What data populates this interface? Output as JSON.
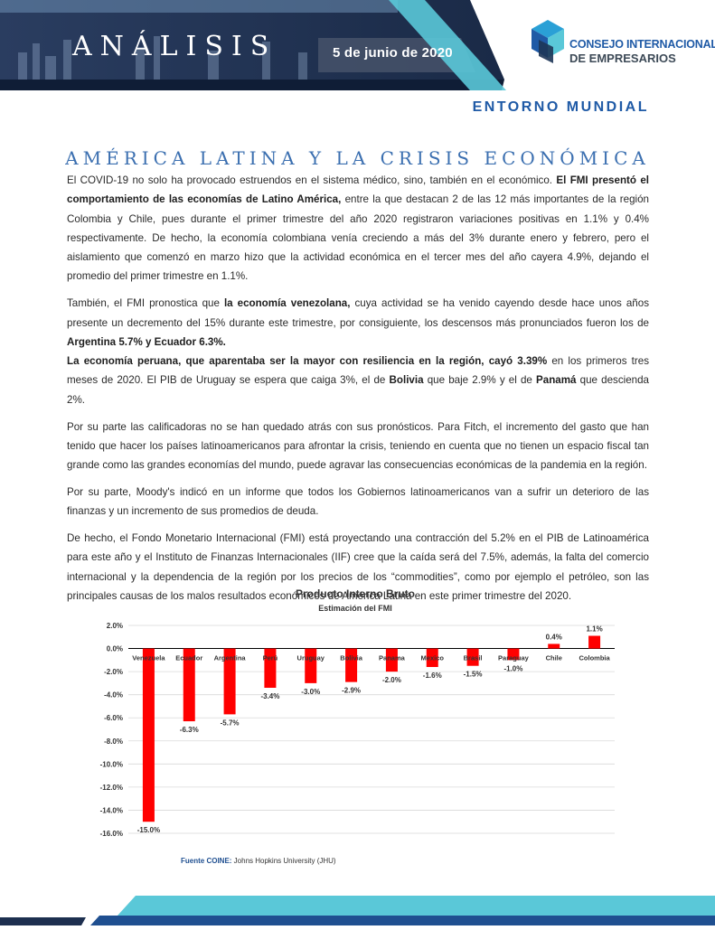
{
  "header": {
    "title": "ANÁLISIS",
    "date": "5 de junio  de 2020",
    "logo_line1": "CONSEJO INTERNACIONAL",
    "logo_line2": "DE EMPRESARIOS",
    "logo_icon": "coine-cube-logo-icon",
    "colors": {
      "navy": "#1d2f4f",
      "blue": "#1f5aa6",
      "teal": "#5ac8d8"
    }
  },
  "section_label": "ENTORNO MUNDIAL",
  "article": {
    "title": "AMÉRICA LATINA Y LA CRISIS ECONÓMICA",
    "p1": [
      "El COVID-19 no solo ha provocado estruendos en el sistema médico, sino, también en el económico. ",
      "El FMI presentó el comportamiento de las economías de Latino América,",
      " entre la que destacan 2 de las 12 más importantes de la región Colombia y Chile, pues durante el primer trimestre del año 2020 registraron variaciones positivas en 1.1% y 0.4% respectivamente. De hecho, la economía colombiana venía creciendo a más del 3% durante enero y febrero, pero el aislamiento que comenzó en marzo hizo que la actividad económica en el tercer mes del año cayera 4.9%, dejando el promedio del primer trimestre en 1.1%."
    ],
    "p2": [
      "También, el FMI pronostica que ",
      "la economía venezolana,",
      " cuya actividad se ha venido cayendo desde hace unos años presente un decremento del 15% durante este trimestre, por consiguiente, los descensos más pronunciados fueron los de ",
      "Argentina 5.7% y Ecuador 6.3%.",
      "La economía peruana, que aparentaba ser la mayor con resiliencia en la región, cayó 3.39%",
      " en los primeros tres meses de 2020. El PIB de Uruguay se espera que caiga 3%, el de ",
      "Bolivia",
      " que baje 2.9% y el de ",
      "Panamá",
      " que descienda 2%."
    ],
    "p3": "Por su parte las calificadoras no se han quedado atrás con sus pronósticos. Para Fitch, el incremento del gasto que han tenido que hacer los países latinoamericanos para afrontar la crisis, teniendo en cuenta que no tienen un espacio fiscal tan grande como las grandes economías del mundo, puede agravar las consecuencias económicas de la pandemia en la región.",
    "p4": "Por su parte, Moody's indicó en un informe que todos los Gobiernos latinoamericanos van a sufrir un deterioro de las finanzas y un incremento de sus promedios de deuda.",
    "p5": "De hecho, el Fondo Monetario Internacional (FMI) está proyectando una contracción del 5.2% en el PIB de Latinoamérica para este año y el Instituto de Finanzas Internacionales (IIF) cree que la caída será del 7.5%, además, la falta del comercio internacional y la dependencia de la región  por los precios de los “commodities”, como por ejemplo el petróleo, son las principales causas de los malos resultados económicos de América Latina en este primer trimestre del 2020."
  },
  "chart_data": {
    "type": "bar",
    "title": "Producto Interno Bruto",
    "subtitle": "Estimación del FMI",
    "categories": [
      "Venezuela",
      "Ecuador",
      "Argentina",
      "Perú",
      "Uruguay",
      "Bolivia",
      "Panama",
      "Mexico",
      "Brasil",
      "Paraguay",
      "Chile",
      "Colombia"
    ],
    "values": [
      -15.0,
      -6.3,
      -5.7,
      -3.4,
      -3.0,
      -2.9,
      -2.0,
      -1.6,
      -1.5,
      -1.0,
      0.4,
      1.1
    ],
    "value_labels": [
      "-15.0%",
      "-6.3%",
      "-5.7%",
      "-3.4%",
      "-3.0%",
      "-2.9%",
      "-2.0%",
      "-1.6%",
      "-1.5%",
      "-1.0%",
      "0.4%",
      "1.1%"
    ],
    "y_ticks": [
      "2.0%",
      "0.0%",
      "-2.0%",
      "-4.0%",
      "-6.0%",
      "-8.0%",
      "-10.0%",
      "-12.0%",
      "-14.0%",
      "-16.0%"
    ],
    "ylim": [
      -16,
      2
    ],
    "grid": true,
    "bar_color": "#ff0000",
    "source_label": "Fuente COINE:",
    "source_text": " Johns Hopkins University (JHU)"
  }
}
